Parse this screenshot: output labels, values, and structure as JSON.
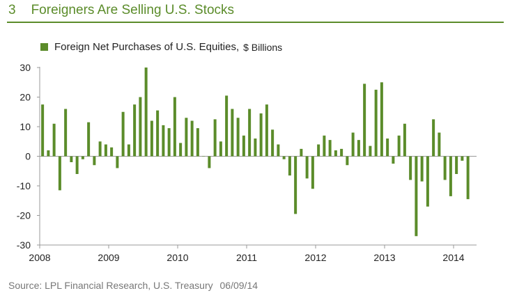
{
  "header": {
    "number": "3",
    "title": "Foreigners Are Selling U.S. Stocks"
  },
  "colors": {
    "accent": "#5b8c2a",
    "bar": "#5b8c2a"
  },
  "chart_data": {
    "type": "bar",
    "title": "",
    "legend": [
      {
        "label": "Foreign Net Purchases of U.S. Equities,",
        "unit": "$ Billions"
      }
    ],
    "legend_position": "top-left",
    "ylim": [
      -30,
      30
    ],
    "yticks": [
      30,
      20,
      10,
      0,
      -10,
      -20,
      -30
    ],
    "xticks": [
      "2008",
      "2009",
      "2010",
      "2011",
      "2012",
      "2013",
      "2014"
    ],
    "x_start": "2008-01",
    "x_end": "2014-04",
    "grid": false,
    "series": [
      {
        "values": [
          17.5,
          2,
          11,
          -11.5,
          16,
          -2,
          -6,
          -1,
          11.5,
          -3,
          5,
          4,
          3,
          -4,
          15,
          4,
          17.5,
          20,
          30,
          12,
          15.5,
          10.5,
          9.5,
          20,
          4.5,
          13,
          12,
          9.5,
          0,
          -4,
          12.5,
          5,
          20.5,
          16,
          13,
          7,
          16,
          6,
          14.5,
          17.5,
          9,
          4,
          -1,
          -6.5,
          -19.5,
          2.5,
          -7.5,
          -11,
          4,
          7,
          5.5,
          2,
          2.5,
          -3,
          8,
          5.5,
          24.5,
          3.5,
          22.5,
          25,
          6,
          -2.5,
          7,
          11,
          -8,
          -27,
          -8.5,
          -17,
          12.5,
          8,
          -8,
          -13.5,
          -6,
          -1.5,
          -14.5
        ]
      }
    ]
  },
  "source": {
    "text": "Source: LPL Financial Research, U.S. Treasury",
    "date": "06/09/14"
  }
}
